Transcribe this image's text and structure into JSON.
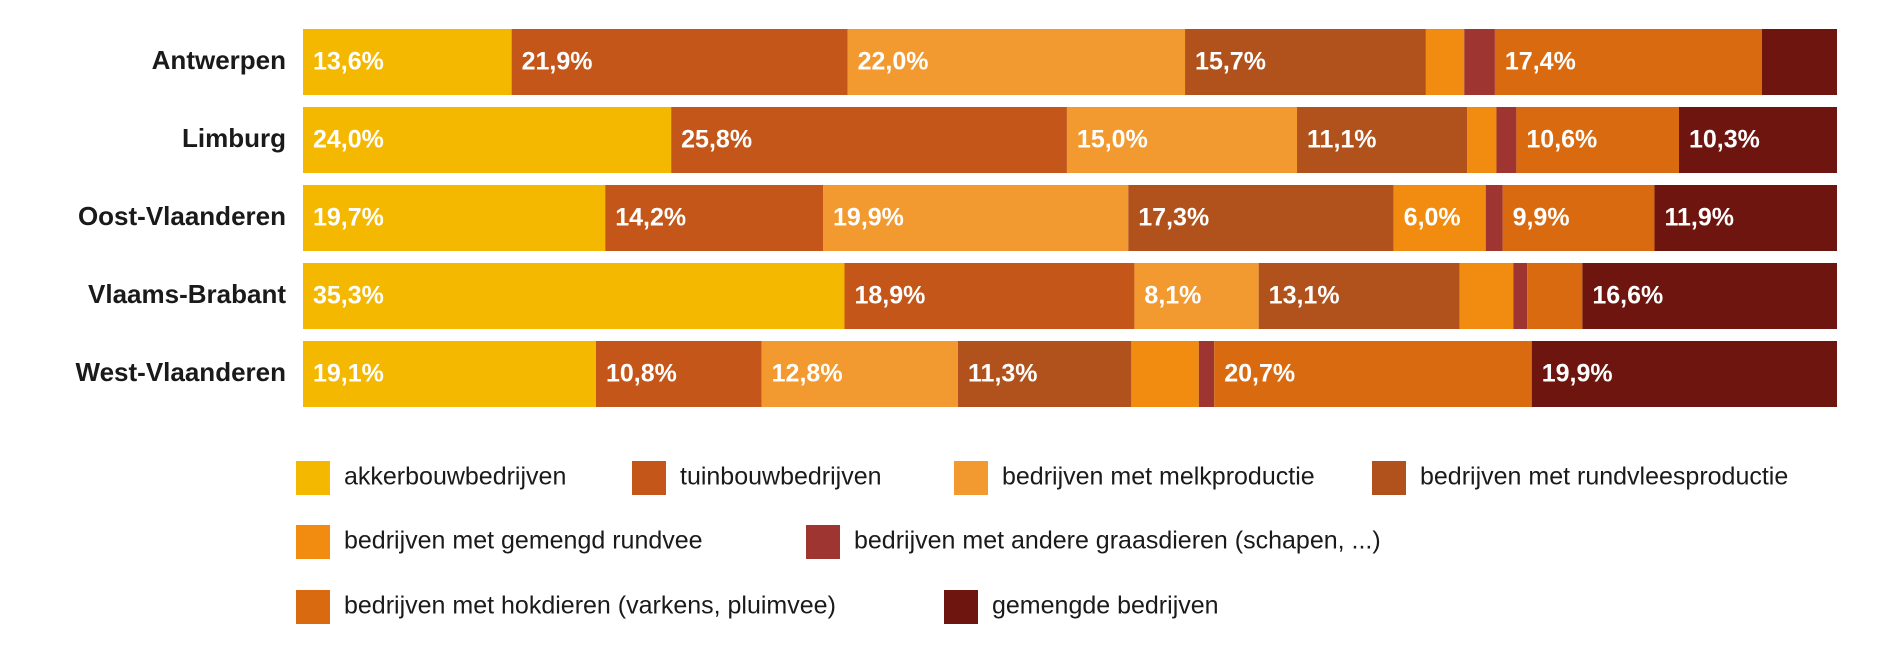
{
  "chart_data": {
    "type": "stacked-bar-horizontal",
    "categories": [
      "Antwerpen",
      "Limburg",
      "Oost-Vlaanderen",
      "Vlaams-Brabant",
      "West-Vlaanderen"
    ],
    "xlim": [
      0,
      100
    ],
    "series": [
      {
        "name": "akkerbouwbedrijven",
        "color": "#f5b800",
        "values": [
          13.6,
          24.0,
          19.7,
          35.3,
          19.1
        ],
        "value_labels": [
          "13,6%",
          "24,0%",
          "19,7%",
          "35,3%",
          "19,1%"
        ]
      },
      {
        "name": "tuinbouwbedrijven",
        "color": "#c4561a",
        "values": [
          21.9,
          25.8,
          14.2,
          18.9,
          10.8
        ],
        "value_labels": [
          "21,9%",
          "25,8%",
          "14,2%",
          "18,9%",
          "10,8%"
        ]
      },
      {
        "name": "bedrijven met melkproductie",
        "color": "#f29a30",
        "values": [
          22.0,
          15.0,
          19.9,
          8.1,
          12.8
        ],
        "value_labels": [
          "22,0%",
          "15,0%",
          "19,9%",
          "8,1%",
          "12,8%"
        ]
      },
      {
        "name": "bedrijven met rundvleesproductie",
        "color": "#b1521c",
        "values": [
          15.7,
          11.1,
          17.3,
          13.1,
          11.3
        ],
        "value_labels": [
          "15,7%",
          "11,1%",
          "17,3%",
          "13,1%",
          "11,3%"
        ]
      },
      {
        "name": "bedrijven met gemengd rundvee",
        "color": "#f28c10",
        "values": [
          2.5,
          1.9,
          6.0,
          3.5,
          4.4
        ],
        "value_labels": [
          null,
          null,
          "6,0%",
          null,
          null
        ]
      },
      {
        "name": "bedrijven met andere graasdieren (schapen, ...)",
        "color": "#9e3530",
        "values": [
          2.0,
          1.3,
          1.1,
          0.9,
          1.0
        ],
        "value_labels": [
          null,
          null,
          null,
          null,
          null
        ]
      },
      {
        "name": "bedrijven met hokdieren (varkens, pluimvee)",
        "color": "#d96a10",
        "values": [
          17.4,
          10.6,
          9.9,
          3.6,
          20.7
        ],
        "value_labels": [
          "17,4%",
          "10,6%",
          "9,9%",
          null,
          "20,7%"
        ]
      },
      {
        "name": "gemengde bedrijven",
        "color": "#6e1510",
        "values": [
          4.9,
          10.3,
          11.9,
          16.6,
          19.9
        ],
        "value_labels": [
          null,
          "10,3%",
          "11,9%",
          "16,6%",
          "19,9%"
        ]
      }
    ]
  }
}
